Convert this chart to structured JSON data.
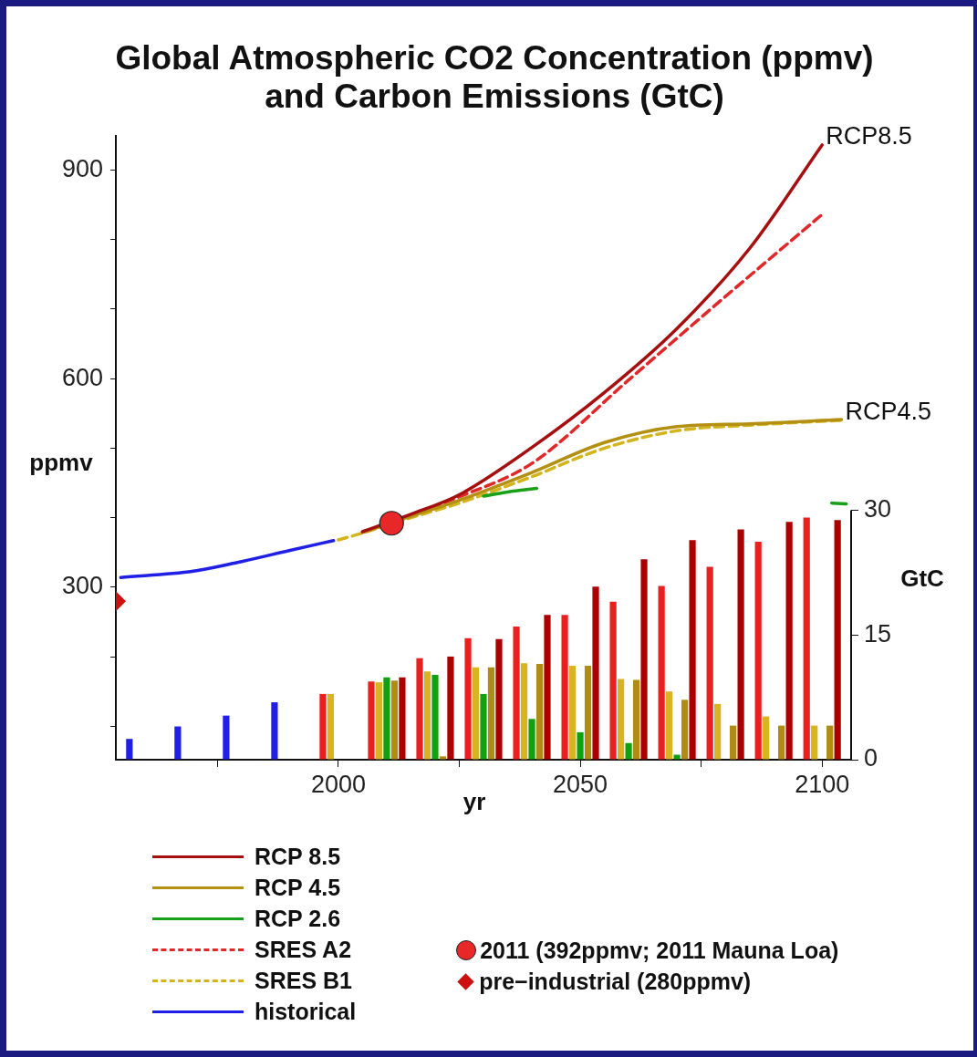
{
  "chart_data": {
    "type": "line",
    "title": "Global Atmospheric CO2 Concentration (ppmv) and Carbon Emissions (GtC)",
    "xlabel": "yr",
    "ylabel": "ppmv",
    "y2label": "GtC",
    "legend": "bottom",
    "xlim": [
      1954,
      2106
    ],
    "xticks": [
      {
        "value": 1975,
        "label": null
      },
      2000,
      {
        "value": 2025,
        "label": null
      },
      2050,
      {
        "value": 2075,
        "label": null
      },
      2100
    ],
    "ylim": [
      52,
      949
    ],
    "yticks": [
      {
        "value": 100,
        "label": null
      },
      {
        "value": 200,
        "label": null
      },
      300,
      {
        "value": 400,
        "label": null
      },
      {
        "value": 500,
        "label": null
      },
      600,
      {
        "value": 700,
        "label": null
      },
      {
        "value": 800,
        "label": null
      },
      900
    ],
    "y2lim": [
      0,
      75
    ],
    "y2ticks": [
      0,
      15,
      30
    ],
    "annotations": [
      {
        "text": "RCP8.5",
        "x": 2100,
        "y": 936
      },
      {
        "text": "RCP4.5",
        "x": 2104,
        "y": 541
      }
    ],
    "series": [
      {
        "name": "RCP 8.5",
        "color": "#a50f0f",
        "line_style": "solid",
        "x": [
          2005,
          2015,
          2025,
          2040,
          2055,
          2070,
          2085,
          2100
        ],
        "values": [
          380,
          405,
          433,
          501,
          580,
          672,
          787,
          936
        ]
      },
      {
        "name": "RCP 4.5",
        "color": "#b38f12",
        "line_style": "solid",
        "x": [
          2005,
          2015,
          2025,
          2040,
          2055,
          2070,
          2085,
          2104
        ],
        "values": [
          379,
          402,
          425,
          465,
          508,
          531,
          535,
          541
        ]
      },
      {
        "name": "RCP 2.6",
        "color": "#18a018",
        "line_style": "solid",
        "x": [
          2030,
          2035,
          2041,
          2070,
          2102,
          2105
        ],
        "values": [
          431,
          437,
          442,
          null,
          421,
          420
        ]
      },
      {
        "name": "SRES A2",
        "color": "#e02828",
        "line_style": "dashed",
        "x": [
          2005,
          2010,
          2025,
          2040,
          2060,
          2080,
          2100
        ],
        "values": [
          379,
          391,
          430,
          478,
          598,
          718,
          836
        ]
      },
      {
        "name": "SRES B1",
        "color": "#d4b41c",
        "line_style": "dashed",
        "x": [
          2000,
          2005,
          2015,
          2025,
          2040,
          2055,
          2070,
          2085,
          2104
        ],
        "values": [
          368,
          378,
          400,
          421,
          459,
          500,
          525,
          533,
          540
        ]
      },
      {
        "name": "historical",
        "color": "#1f1fe6",
        "line_style": "solid",
        "x": [
          1955,
          1970,
          1980,
          1990,
          1999
        ],
        "values": [
          314,
          323,
          337,
          353,
          367
        ]
      },
      {
        "name": "2011 (392ppmv; 2011 Mauna Loa)",
        "type": "scatter",
        "marker": "circle",
        "color": "#e82828",
        "x": [
          2011
        ],
        "values": [
          392
        ]
      },
      {
        "name": "pre−industrial (280ppmv)",
        "type": "scatter",
        "marker": "diamond",
        "color": "#cc1010",
        "x": [
          1954
        ],
        "values": [
          280
        ]
      },
      {
        "type": "bar",
        "axis": "y2",
        "color": "#e82020",
        "x": [
          2000,
          2010,
          2020,
          2030,
          2040,
          2050,
          2060,
          2070,
          2080,
          2090,
          2100
        ],
        "values": [
          7.9,
          9.4,
          12.2,
          14.6,
          16.0,
          17.4,
          19.0,
          20.9,
          23.2,
          26.2,
          29.1
        ]
      },
      {
        "type": "bar",
        "axis": "y2",
        "color": "#d8b420",
        "x": [
          2000,
          2010,
          2020,
          2030,
          2040,
          2050,
          2060,
          2070,
          2080,
          2090,
          2100
        ],
        "values": [
          7.9,
          9.3,
          10.6,
          11.1,
          11.6,
          11.3,
          9.7,
          8.2,
          6.7,
          5.2,
          4.1
        ]
      },
      {
        "type": "bar",
        "axis": "y2",
        "color": "#10a010",
        "x": [
          2010,
          2020,
          2030,
          2040,
          2050,
          2060,
          2070
        ],
        "values": [
          9.9,
          10.2,
          7.9,
          4.9,
          3.3,
          2.0,
          0.6
        ]
      },
      {
        "type": "bar",
        "axis": "y2",
        "color": "#b08c14",
        "x": [
          2010,
          2020,
          2030,
          2040,
          2050,
          2060,
          2070,
          2080,
          2090,
          2100
        ],
        "values": [
          9.5,
          0.4,
          11.1,
          11.5,
          11.3,
          9.6,
          7.2,
          4.1,
          4.1,
          4.1
        ]
      },
      {
        "type": "bar",
        "axis": "y2",
        "color": "#aa0000",
        "x": [
          2010,
          2020,
          2030,
          2040,
          2050,
          2060,
          2070,
          2080,
          2090,
          2100
        ],
        "values": [
          9.9,
          12.4,
          14.5,
          17.4,
          20.8,
          24.1,
          26.4,
          27.7,
          28.6,
          28.8
        ]
      },
      {
        "type": "bar",
        "axis": "y2",
        "color": "#1f1fe6",
        "x": [
          1960,
          1970,
          1980,
          1990
        ],
        "values": [
          2.5,
          4.0,
          5.3,
          6.9
        ]
      }
    ]
  }
}
